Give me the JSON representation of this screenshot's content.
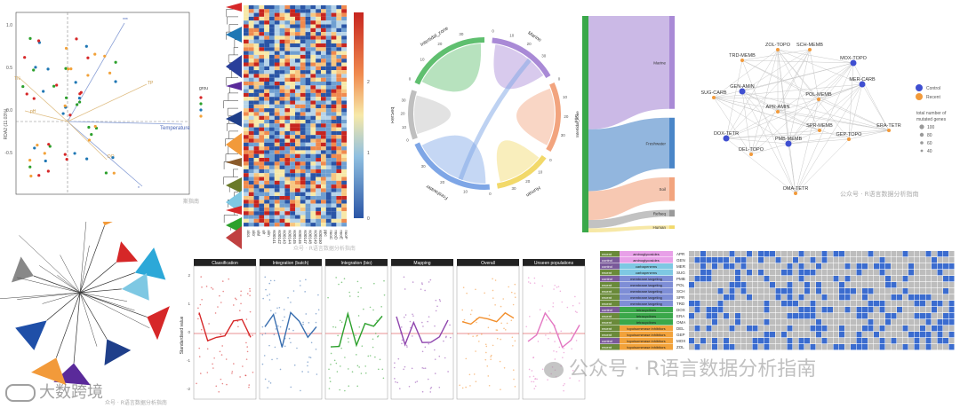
{
  "watermarks": {
    "pcoa": "斯指南",
    "heatmap1": "众号 · R语言数据分析指南",
    "network": "公众号 · R语言数据分析指南",
    "facets": "公众号 · R语言数据分析指南",
    "big": "公众号 · R语言数据分析指南",
    "bottom_left_brand": "大数跨境",
    "bottom_left_sub": "众号 · R语言数据分析指南"
  },
  "pcoa": {
    "ylabel": "RDA2 (11.03%)",
    "yticks": [
      "1.0",
      "0.5",
      "0.0",
      "-0.5"
    ],
    "legend_title": "grou",
    "arrows": [
      {
        "label": "Temperature",
        "color": "#4a66b8"
      },
      {
        "label": "***",
        "color": "#4a66b8"
      },
      {
        "label": "*",
        "color": "#4a66b8"
      },
      {
        "label": "TP",
        "color": "#d6a45a"
      },
      {
        "label": "TN",
        "color": "#d6a45a"
      },
      {
        "label": "pH",
        "color": "#d6a45a"
      },
      {
        "label": "DO",
        "color": "#d6a45a"
      }
    ]
  },
  "heatmap1": {
    "legend_ticks": [
      "2",
      "1",
      "0"
    ],
    "col_labels": [
      "alcs",
      "alcr",
      "alsl",
      "alr",
      "alm",
      "K00141",
      "K00142",
      "K00143",
      "K00144",
      "K00145",
      "K00146",
      "K00147",
      "K00148",
      "K00149",
      "K00150",
      "ppc",
      "nuoC",
      "nuoD",
      "nuoE",
      "nuoF"
    ]
  },
  "chord": {
    "sectors": [
      {
        "name": "RefSeq",
        "color": "#bfbfbf"
      },
      {
        "name": "Intertidal_zone",
        "color": "#5fbf6f"
      },
      {
        "name": "Marine",
        "color": "#a98ad6"
      },
      {
        "name": "Soil",
        "color": "#f2a47e"
      },
      {
        "name": "Human",
        "color": "#f2d96a"
      },
      {
        "name": "Freshwater",
        "color": "#7ea6e6"
      }
    ],
    "ticks": [
      "0",
      "5",
      "10",
      "15",
      "20",
      "25",
      "30",
      "35",
      "40"
    ]
  },
  "sankey": {
    "left_label": "Intertidal_zone",
    "nodes": [
      {
        "name": "Marine",
        "value": 55,
        "color": "#a98ad6"
      },
      {
        "name": "Freshwater",
        "value": 30,
        "color": "#4a86c8"
      },
      {
        "name": "Soil",
        "value": 14,
        "color": "#f2a47e"
      },
      {
        "name": "Refseq",
        "value": 4,
        "color": "#9a9a9a"
      },
      {
        "name": "Human",
        "value": 2,
        "color": "#f2d96a"
      }
    ]
  },
  "network": {
    "nodes": [
      {
        "name": "ZOL-TOPO",
        "group": "Recent"
      },
      {
        "name": "SCH-MEMB",
        "group": "Recent"
      },
      {
        "name": "TRD-MEMB",
        "group": "Recent"
      },
      {
        "name": "MOX-TOPO",
        "group": "Control"
      },
      {
        "name": "MER-CARB",
        "group": "Control"
      },
      {
        "name": "SUG-CARB",
        "group": "Recent"
      },
      {
        "name": "GEN-AMIN",
        "group": "Control"
      },
      {
        "name": "POL-MEMB",
        "group": "Recent"
      },
      {
        "name": "APR-AMIN",
        "group": "Recent"
      },
      {
        "name": "SPR-MEMB",
        "group": "Recent"
      },
      {
        "name": "ERA-TETR",
        "group": "Recent"
      },
      {
        "name": "DOX-TETR",
        "group": "Control"
      },
      {
        "name": "PMB-MEMB",
        "group": "Control"
      },
      {
        "name": "GEP-TOPO",
        "group": "Recent"
      },
      {
        "name": "DEL-TOPO",
        "group": "Recent"
      },
      {
        "name": "OMA-TETR",
        "group": "Recent"
      }
    ],
    "legend_groups": [
      {
        "name": "Control",
        "color": "#3f4fd1"
      },
      {
        "name": "Recent",
        "color": "#f29a3a"
      }
    ],
    "size_legend_title": [
      "total number of",
      "mutated genes"
    ],
    "size_legend_values": [
      "100",
      "80",
      "60",
      "40"
    ]
  },
  "tree": {
    "clade_colors": [
      "#f29a3a",
      "#d62728",
      "#2ca8d8",
      "#7ec8e3",
      "#1f3f8a",
      "#d62728",
      "#5a2a9a",
      "#f29a3a",
      "#1f4fa8",
      "#888888"
    ]
  },
  "facets": {
    "titles": [
      "Classification",
      "Integration (batch)",
      "Integration (bio)",
      "Mapping",
      "Overall",
      "Unseen populations"
    ],
    "colors": [
      "#d62728",
      "#3a6fb0",
      "#2ca02c",
      "#8e44ad",
      "#f28e2b",
      "#e377c2"
    ],
    "ylabel": "Standardised value",
    "yticks": [
      "2",
      "1",
      "0",
      "-1",
      "-2"
    ]
  },
  "oncoprint": {
    "left_rows": [
      {
        "group": "recent",
        "cls": "aminoglycosides",
        "code": "APR"
      },
      {
        "group": "control",
        "cls": "aminoglycosides",
        "code": "GEN"
      },
      {
        "group": "control",
        "cls": "carbapenems",
        "code": "MER"
      },
      {
        "group": "recent",
        "cls": "carbapenems",
        "code": "SUG"
      },
      {
        "group": "control",
        "cls": "membrane targeting",
        "code": "PMB"
      },
      {
        "group": "recent",
        "cls": "membrane targeting",
        "code": "POL"
      },
      {
        "group": "recent",
        "cls": "membrane targeting",
        "code": "SCH"
      },
      {
        "group": "recent",
        "cls": "membrane targeting",
        "code": "SPR"
      },
      {
        "group": "recent",
        "cls": "membrane targeting",
        "code": "TRD"
      },
      {
        "group": "control",
        "cls": "tetracyclines",
        "code": "DOX"
      },
      {
        "group": "recent",
        "cls": "tetracyclines",
        "code": "ERA"
      },
      {
        "group": "recent",
        "cls": "tetracyclines",
        "code": "OMA"
      },
      {
        "group": "recent",
        "cls": "topoisomerase inhibitors",
        "code": "DEL"
      },
      {
        "group": "recent",
        "cls": "topoisomerase inhibitors",
        "code": "GEP"
      },
      {
        "group": "control",
        "cls": "topoisomerase inhibitors",
        "code": "MOX"
      },
      {
        "group": "recent",
        "cls": "topoisomerase inhibitors",
        "code": "ZOL"
      }
    ],
    "class_colors": {
      "aminoglycosides": "#e8a0e8",
      "carbapenems": "#7ec8e3",
      "membrane targeting": "#7e8ed6",
      "tetracyclines": "#3aa84a",
      "topoisomerase inhibitors": "#f2a23a"
    },
    "fill": "#3b6ccf",
    "empty": "#bdbdbd"
  }
}
